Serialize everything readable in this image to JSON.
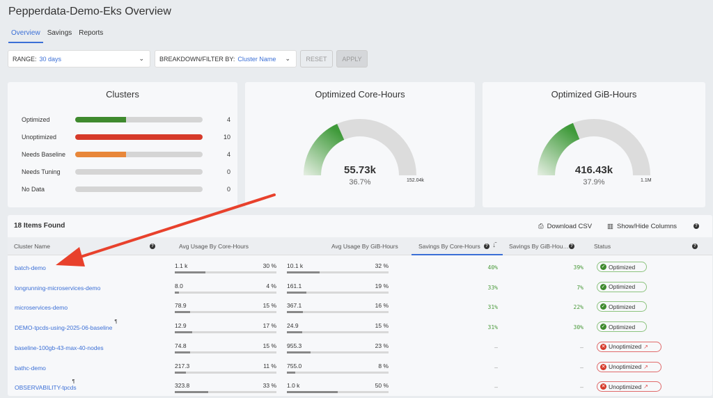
{
  "title": "Pepperdata-Demo-Eks Overview",
  "tabs": [
    "Overview",
    "Savings",
    "Reports"
  ],
  "filters": {
    "range_label": "RANGE:",
    "range_value": "30 days",
    "breakdown_label": "BREAKDOWN/FILTER BY:",
    "breakdown_value": "Cluster Name",
    "reset": "RESET",
    "apply": "APPLY"
  },
  "clusters": {
    "title": "Clusters",
    "max": 10,
    "items": [
      {
        "label": "Optimized",
        "count": 4,
        "color": "#3f8a2e"
      },
      {
        "label": "Unoptimized",
        "count": 10,
        "color": "#d63a2a"
      },
      {
        "label": "Needs Baseline",
        "count": 4,
        "color": "#e8873a"
      },
      {
        "label": "Needs Tuning",
        "count": 0,
        "color": "#999999"
      },
      {
        "label": "No Data",
        "count": 0,
        "color": "#999999"
      }
    ]
  },
  "gauges": [
    {
      "title": "Optimized Core-Hours",
      "value": "55.73k",
      "percent_label": "36.7%",
      "percent": 36.7,
      "max": "152.04k"
    },
    {
      "title": "Optimized GiB-Hours",
      "value": "416.43k",
      "percent_label": "37.9%",
      "percent": 37.9,
      "max": "1.1M"
    }
  ],
  "table": {
    "found": "18 Items Found",
    "download": "Download CSV",
    "showhide": "Show/Hide Columns",
    "columns": [
      "Cluster Name",
      "Avg Usage By Core-Hours",
      "Avg Usage By GiB-Hours",
      "Savings By Core-Hours",
      "Savings By GiB-Hou…",
      "Status"
    ],
    "rows": [
      {
        "name": "batch-demo",
        "core": "1.1 k",
        "core_pct": "30 %",
        "core_f": 30,
        "gib": "10.1 k",
        "gib_pct": "32 %",
        "gib_f": 32,
        "sav_core": "40%",
        "sav_gib": "39%",
        "status": "Optimized"
      },
      {
        "name": "longrunning-microservices-demo",
        "core": "8.0",
        "core_pct": "4 %",
        "core_f": 4,
        "gib": "161.1",
        "gib_pct": "19 %",
        "gib_f": 19,
        "sav_core": "33%",
        "sav_gib": "7%",
        "status": "Optimized"
      },
      {
        "name": "microservices-demo",
        "core": "78.9",
        "core_pct": "15 %",
        "core_f": 15,
        "gib": "367.1",
        "gib_pct": "16 %",
        "gib_f": 16,
        "sav_core": "31%",
        "sav_gib": "22%",
        "status": "Optimized"
      },
      {
        "name": "DEMO-tpcds-using-2025-06-baseline",
        "core": "12.9",
        "core_pct": "17 %",
        "core_f": 17,
        "gib": "24.9",
        "gib_pct": "15 %",
        "gib_f": 15,
        "sav_core": "31%",
        "sav_gib": "30%",
        "status": "Optimized",
        "note": "¶"
      },
      {
        "name": "baseline-100gb-43-max-40-nodes",
        "core": "74.8",
        "core_pct": "15 %",
        "core_f": 15,
        "gib": "955.3",
        "gib_pct": "23 %",
        "gib_f": 23,
        "sav_core": "–",
        "sav_gib": "–",
        "status": "Unoptimized"
      },
      {
        "name": "bathc-demo",
        "core": "217.3",
        "core_pct": "11 %",
        "core_f": 11,
        "gib": "755.0",
        "gib_pct": "8 %",
        "gib_f": 8,
        "sav_core": "–",
        "sav_gib": "–",
        "status": "Unoptimized"
      },
      {
        "name": "OBSERVABILITY-tpcds",
        "core": "323.8",
        "core_pct": "33 %",
        "core_f": 33,
        "gib": "1.0 k",
        "gib_pct": "50 %",
        "gib_f": 50,
        "sav_core": "–",
        "sav_gib": "–",
        "status": "Unoptimized",
        "note": "¶"
      }
    ]
  }
}
